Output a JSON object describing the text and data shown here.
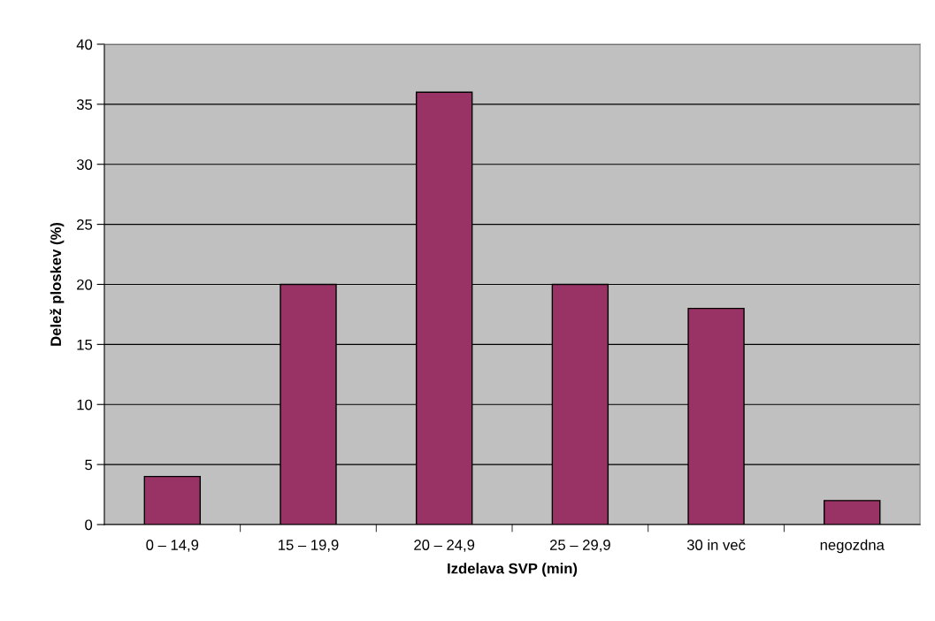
{
  "chart_data": {
    "type": "bar",
    "xlabel": "Izdelava SVP (min)",
    "ylabel": "Delež ploskev (%)",
    "categories": [
      "0 – 14,9",
      "15 – 19,9",
      "20 – 24,9",
      "25 – 29,9",
      "30 in več",
      "negozdna"
    ],
    "values": [
      4,
      20,
      36,
      20,
      18,
      2
    ],
    "color": "#993366",
    "ylim": [
      0,
      40
    ],
    "yticks": [
      0,
      5,
      10,
      15,
      20,
      25,
      30,
      35,
      40
    ],
    "grid": "y"
  }
}
